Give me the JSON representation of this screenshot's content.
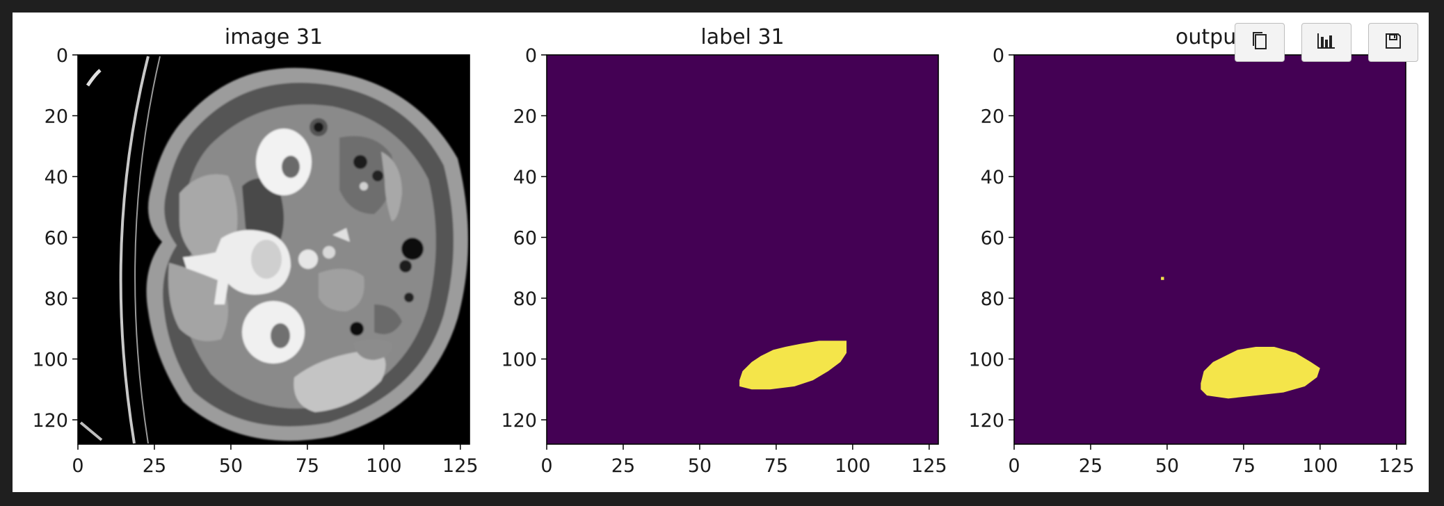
{
  "toolbar": {
    "buttons": [
      {
        "icon": "copy-icon"
      },
      {
        "icon": "bar-chart-icon"
      },
      {
        "icon": "save-icon"
      }
    ]
  },
  "colors": {
    "background_mask": "#440154",
    "foreground_mask": "#f4e54a",
    "ct_background": "#000000"
  },
  "chart_data": [
    {
      "type": "heatmap",
      "title": "image 31",
      "xlim": [
        0,
        128
      ],
      "ylim": [
        128,
        0
      ],
      "xticks": [
        0,
        25,
        50,
        75,
        100,
        125
      ],
      "yticks": [
        0,
        20,
        40,
        60,
        80,
        100,
        120
      ],
      "colormap": "gray",
      "grid": false,
      "content": "axial CT slice of abdomen"
    },
    {
      "type": "heatmap",
      "title": "label 31",
      "xlim": [
        0,
        128
      ],
      "ylim": [
        128,
        0
      ],
      "xticks": [
        0,
        25,
        50,
        75,
        100,
        125
      ],
      "yticks": [
        0,
        20,
        40,
        60,
        80,
        100,
        120
      ],
      "colormap": "viridis",
      "grid": false,
      "regions": [
        {
          "value": 1,
          "polygon": [
            [
              63,
              107
            ],
            [
              64,
              104
            ],
            [
              67,
              101
            ],
            [
              70,
              99
            ],
            [
              74,
              97
            ],
            [
              78,
              96
            ],
            [
              83,
              95
            ],
            [
              89,
              94
            ],
            [
              94,
              94
            ],
            [
              98,
              94
            ],
            [
              98,
              98
            ],
            [
              96,
              101
            ],
            [
              92,
              104
            ],
            [
              87,
              107
            ],
            [
              81,
              109
            ],
            [
              73,
              110
            ],
            [
              67,
              110
            ],
            [
              63,
              109
            ]
          ]
        }
      ]
    },
    {
      "type": "heatmap",
      "title": "output",
      "xlim": [
        0,
        128
      ],
      "ylim": [
        128,
        0
      ],
      "xticks": [
        0,
        25,
        50,
        75,
        100,
        125
      ],
      "yticks": [
        0,
        20,
        40,
        60,
        80,
        100,
        120
      ],
      "colormap": "viridis",
      "grid": false,
      "regions": [
        {
          "value": 1,
          "polygon": [
            [
              61,
              108
            ],
            [
              62,
              104
            ],
            [
              65,
              101
            ],
            [
              69,
              99
            ],
            [
              73,
              97
            ],
            [
              79,
              96
            ],
            [
              85,
              96
            ],
            [
              92,
              98
            ],
            [
              97,
              101
            ],
            [
              100,
              103
            ],
            [
              99,
              106
            ],
            [
              95,
              109
            ],
            [
              88,
              111
            ],
            [
              79,
              112
            ],
            [
              70,
              113
            ],
            [
              63,
              112
            ],
            [
              61,
              110
            ]
          ]
        },
        {
          "value": 1,
          "polygon": [
            [
              48,
              73
            ],
            [
              49,
              73
            ],
            [
              49,
              74
            ],
            [
              48,
              74
            ]
          ]
        }
      ]
    }
  ]
}
